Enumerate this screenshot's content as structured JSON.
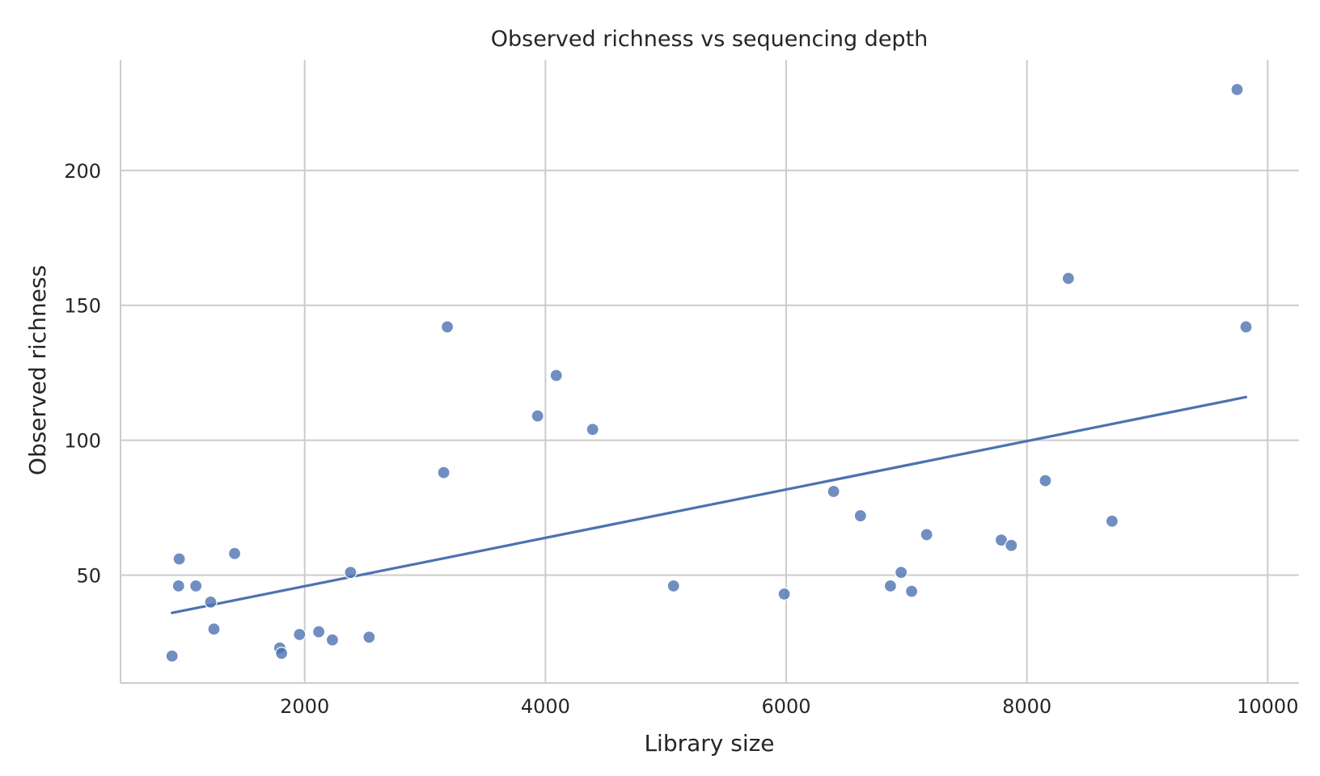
{
  "chart_data": {
    "type": "scatter",
    "title": "Observed richness vs sequencing depth",
    "xlabel": "Library size",
    "ylabel": "Observed richness",
    "xlim": [
      470,
      10260
    ],
    "ylim": [
      10,
      241
    ],
    "xticks": [
      2000,
      4000,
      6000,
      8000,
      10000
    ],
    "yticks": [
      50,
      100,
      150,
      200
    ],
    "grid": true,
    "point_color": "#4c72b0",
    "line_color": "#4c72b0",
    "points": [
      {
        "x": 898,
        "y": 20
      },
      {
        "x": 958,
        "y": 56
      },
      {
        "x": 952,
        "y": 46
      },
      {
        "x": 1096,
        "y": 46
      },
      {
        "x": 1219,
        "y": 40
      },
      {
        "x": 1246,
        "y": 30
      },
      {
        "x": 1418,
        "y": 58
      },
      {
        "x": 1793,
        "y": 23
      },
      {
        "x": 1808,
        "y": 21
      },
      {
        "x": 1957,
        "y": 28
      },
      {
        "x": 2117,
        "y": 29
      },
      {
        "x": 2230,
        "y": 26
      },
      {
        "x": 2381,
        "y": 51
      },
      {
        "x": 2535,
        "y": 27
      },
      {
        "x": 3155,
        "y": 88
      },
      {
        "x": 3185,
        "y": 142
      },
      {
        "x": 3935,
        "y": 109
      },
      {
        "x": 4090,
        "y": 124
      },
      {
        "x": 4392,
        "y": 104
      },
      {
        "x": 5064,
        "y": 46
      },
      {
        "x": 5984,
        "y": 43
      },
      {
        "x": 6394,
        "y": 81
      },
      {
        "x": 6617,
        "y": 72
      },
      {
        "x": 6866,
        "y": 46
      },
      {
        "x": 6955,
        "y": 51
      },
      {
        "x": 7042,
        "y": 44
      },
      {
        "x": 7167,
        "y": 65
      },
      {
        "x": 7787,
        "y": 63
      },
      {
        "x": 7870,
        "y": 61
      },
      {
        "x": 8153,
        "y": 85
      },
      {
        "x": 8344,
        "y": 160
      },
      {
        "x": 8707,
        "y": 70
      },
      {
        "x": 9746,
        "y": 230
      },
      {
        "x": 9820,
        "y": 142
      }
    ],
    "trend_line": {
      "x": [
        898,
        9820
      ],
      "y": [
        36,
        116
      ]
    }
  }
}
